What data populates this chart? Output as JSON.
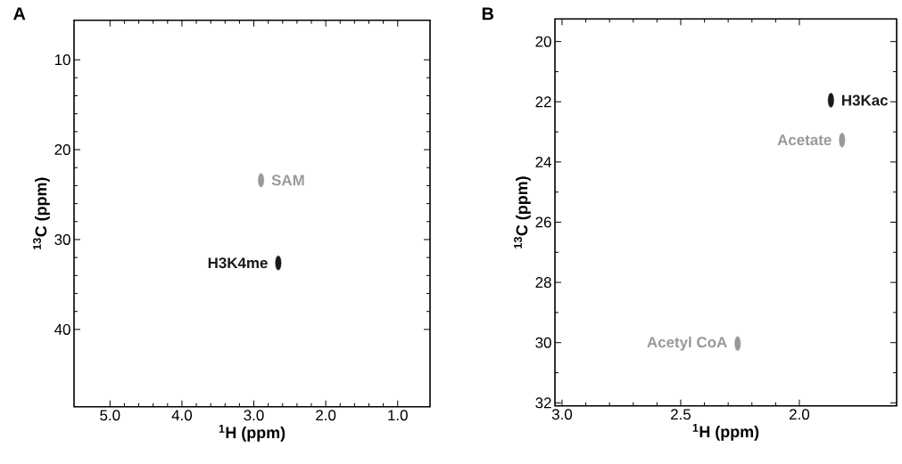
{
  "chart_data": [
    {
      "type": "scatter",
      "title": "A",
      "xlabel": "$^{1}$H (ppm)",
      "ylabel": "$^{13}$C (ppm)",
      "xlim": [
        5.5,
        0.55
      ],
      "ylim": [
        48.6,
        5.6
      ],
      "xticks": [
        {
          "value": 5,
          "label": "5.0"
        },
        {
          "value": 4,
          "label": "4.0"
        },
        {
          "value": 3,
          "label": "3.0"
        },
        {
          "value": 2,
          "label": "2.0"
        },
        {
          "value": 1,
          "label": "1.0"
        }
      ],
      "yticks": [
        10,
        20,
        30,
        40
      ],
      "series": [
        {
          "color": "#999999",
          "x": [
            2.9
          ],
          "values": [
            23.4
          ]
        },
        {
          "color": "#1a1a1a",
          "x": [
            2.66
          ],
          "values": [
            32.6
          ]
        }
      ],
      "annotations": [
        {
          "text": "SAM",
          "x": 2.9,
          "y": 23.4
        },
        {
          "text": "H3K4me",
          "x": 2.66,
          "y": 32.6
        }
      ]
    },
    {
      "type": "scatter",
      "title": "B",
      "xlabel": "$^{1}$H (ppm)",
      "ylabel": "$^{13}$C (ppm)",
      "xlim": [
        3.03,
        1.59
      ],
      "ylim": [
        32.1,
        19.25
      ],
      "xticks": [
        {
          "value": 3,
          "label": "3.0"
        },
        {
          "value": 2.5,
          "label": "2.5"
        },
        {
          "value": 2,
          "label": "2.0"
        }
      ],
      "yticks": [
        20,
        22,
        24,
        26,
        28,
        30,
        32
      ],
      "series": [
        {
          "color": "#1a1a1a",
          "x": [
            1.867
          ],
          "values": [
            21.95
          ]
        },
        {
          "color": "#999999",
          "x": [
            1.82
          ],
          "values": [
            23.27
          ]
        },
        {
          "color": "#999999",
          "x": [
            2.26
          ],
          "values": [
            30.03
          ]
        }
      ],
      "annotations": [
        {
          "text": "H3Kac",
          "x": 1.867,
          "y": 21.95
        },
        {
          "text": "Acetate",
          "x": 1.82,
          "y": 23.27
        },
        {
          "text": "Acetyl CoA",
          "x": 2.26,
          "y": 30.03
        }
      ]
    }
  ]
}
